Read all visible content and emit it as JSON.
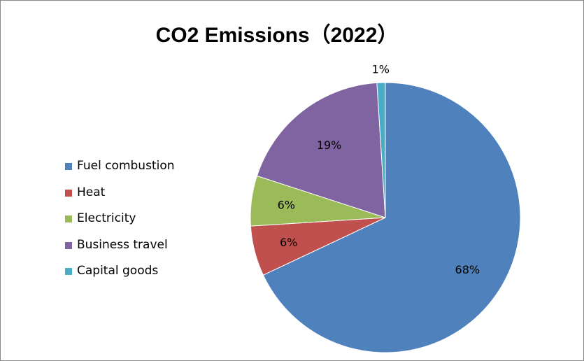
{
  "chart_data": {
    "type": "pie",
    "title": "CO2 Emissions（2022）",
    "legend_position": "left",
    "categories": [
      "Fuel combustion",
      "Heat",
      "Electricity",
      "Business travel",
      "Capital goods"
    ],
    "values": [
      68,
      6,
      6,
      19,
      1
    ],
    "labels": [
      "68%",
      "6%",
      "6%",
      "19%",
      "1%"
    ],
    "colors": [
      "#4F81BD",
      "#C0504D",
      "#9BBB59",
      "#8064A2",
      "#4BACC6"
    ]
  }
}
